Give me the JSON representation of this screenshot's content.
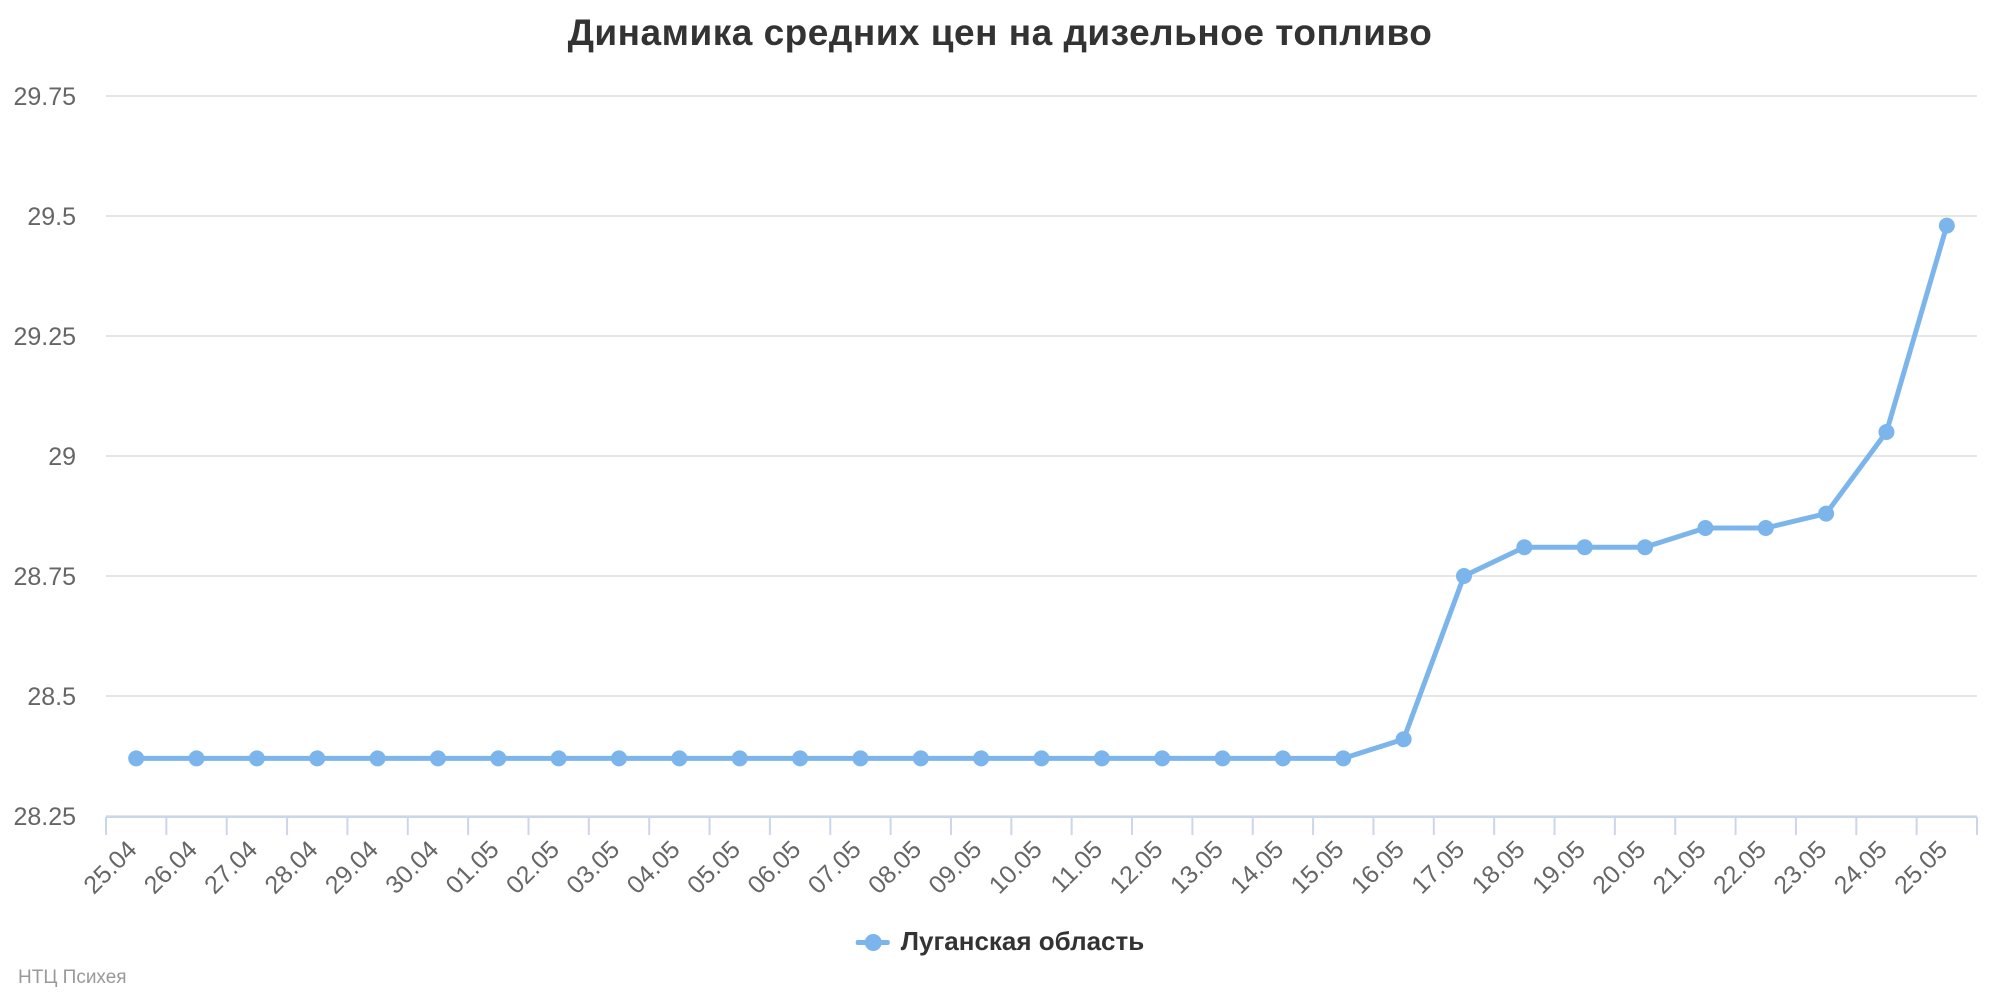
{
  "chart_data": {
    "type": "line",
    "title": "Динамика средних цен на дизельное топливо",
    "categories": [
      "25.04",
      "26.04",
      "27.04",
      "28.04",
      "29.04",
      "30.04",
      "01.05",
      "02.05",
      "03.05",
      "04.05",
      "05.05",
      "06.05",
      "07.05",
      "08.05",
      "09.05",
      "10.05",
      "11.05",
      "12.05",
      "13.05",
      "14.05",
      "15.05",
      "16.05",
      "17.05",
      "18.05",
      "19.05",
      "20.05",
      "21.05",
      "22.05",
      "23.05",
      "24.05",
      "25.05"
    ],
    "series": [
      {
        "name": "Луганская область",
        "color": "#7cb5ec",
        "values": [
          28.37,
          28.37,
          28.37,
          28.37,
          28.37,
          28.37,
          28.37,
          28.37,
          28.37,
          28.37,
          28.37,
          28.37,
          28.37,
          28.37,
          28.37,
          28.37,
          28.37,
          28.37,
          28.37,
          28.37,
          28.37,
          28.41,
          28.75,
          28.81,
          28.81,
          28.81,
          28.85,
          28.85,
          28.88,
          29.05,
          29.48
        ]
      }
    ],
    "xlabel": "",
    "ylabel": "",
    "ylim": [
      28.25,
      29.75
    ],
    "ytick_step": 0.25,
    "ytick_labels": [
      "28.25",
      "28.5",
      "28.75",
      "29",
      "29.25",
      "29.5",
      "29.75"
    ],
    "grid": "horizontal-only",
    "legend_position": "bottom-center",
    "credit": "НТЦ Психея",
    "colors": {
      "series": "#7cb5ec",
      "grid_line": "#e6e6e6",
      "axis_line": "#ccd6eb",
      "title_text": "#333333",
      "axis_label_text": "#666666",
      "legend_text": "#333333",
      "credit_text": "#999999",
      "background": "#ffffff"
    }
  }
}
